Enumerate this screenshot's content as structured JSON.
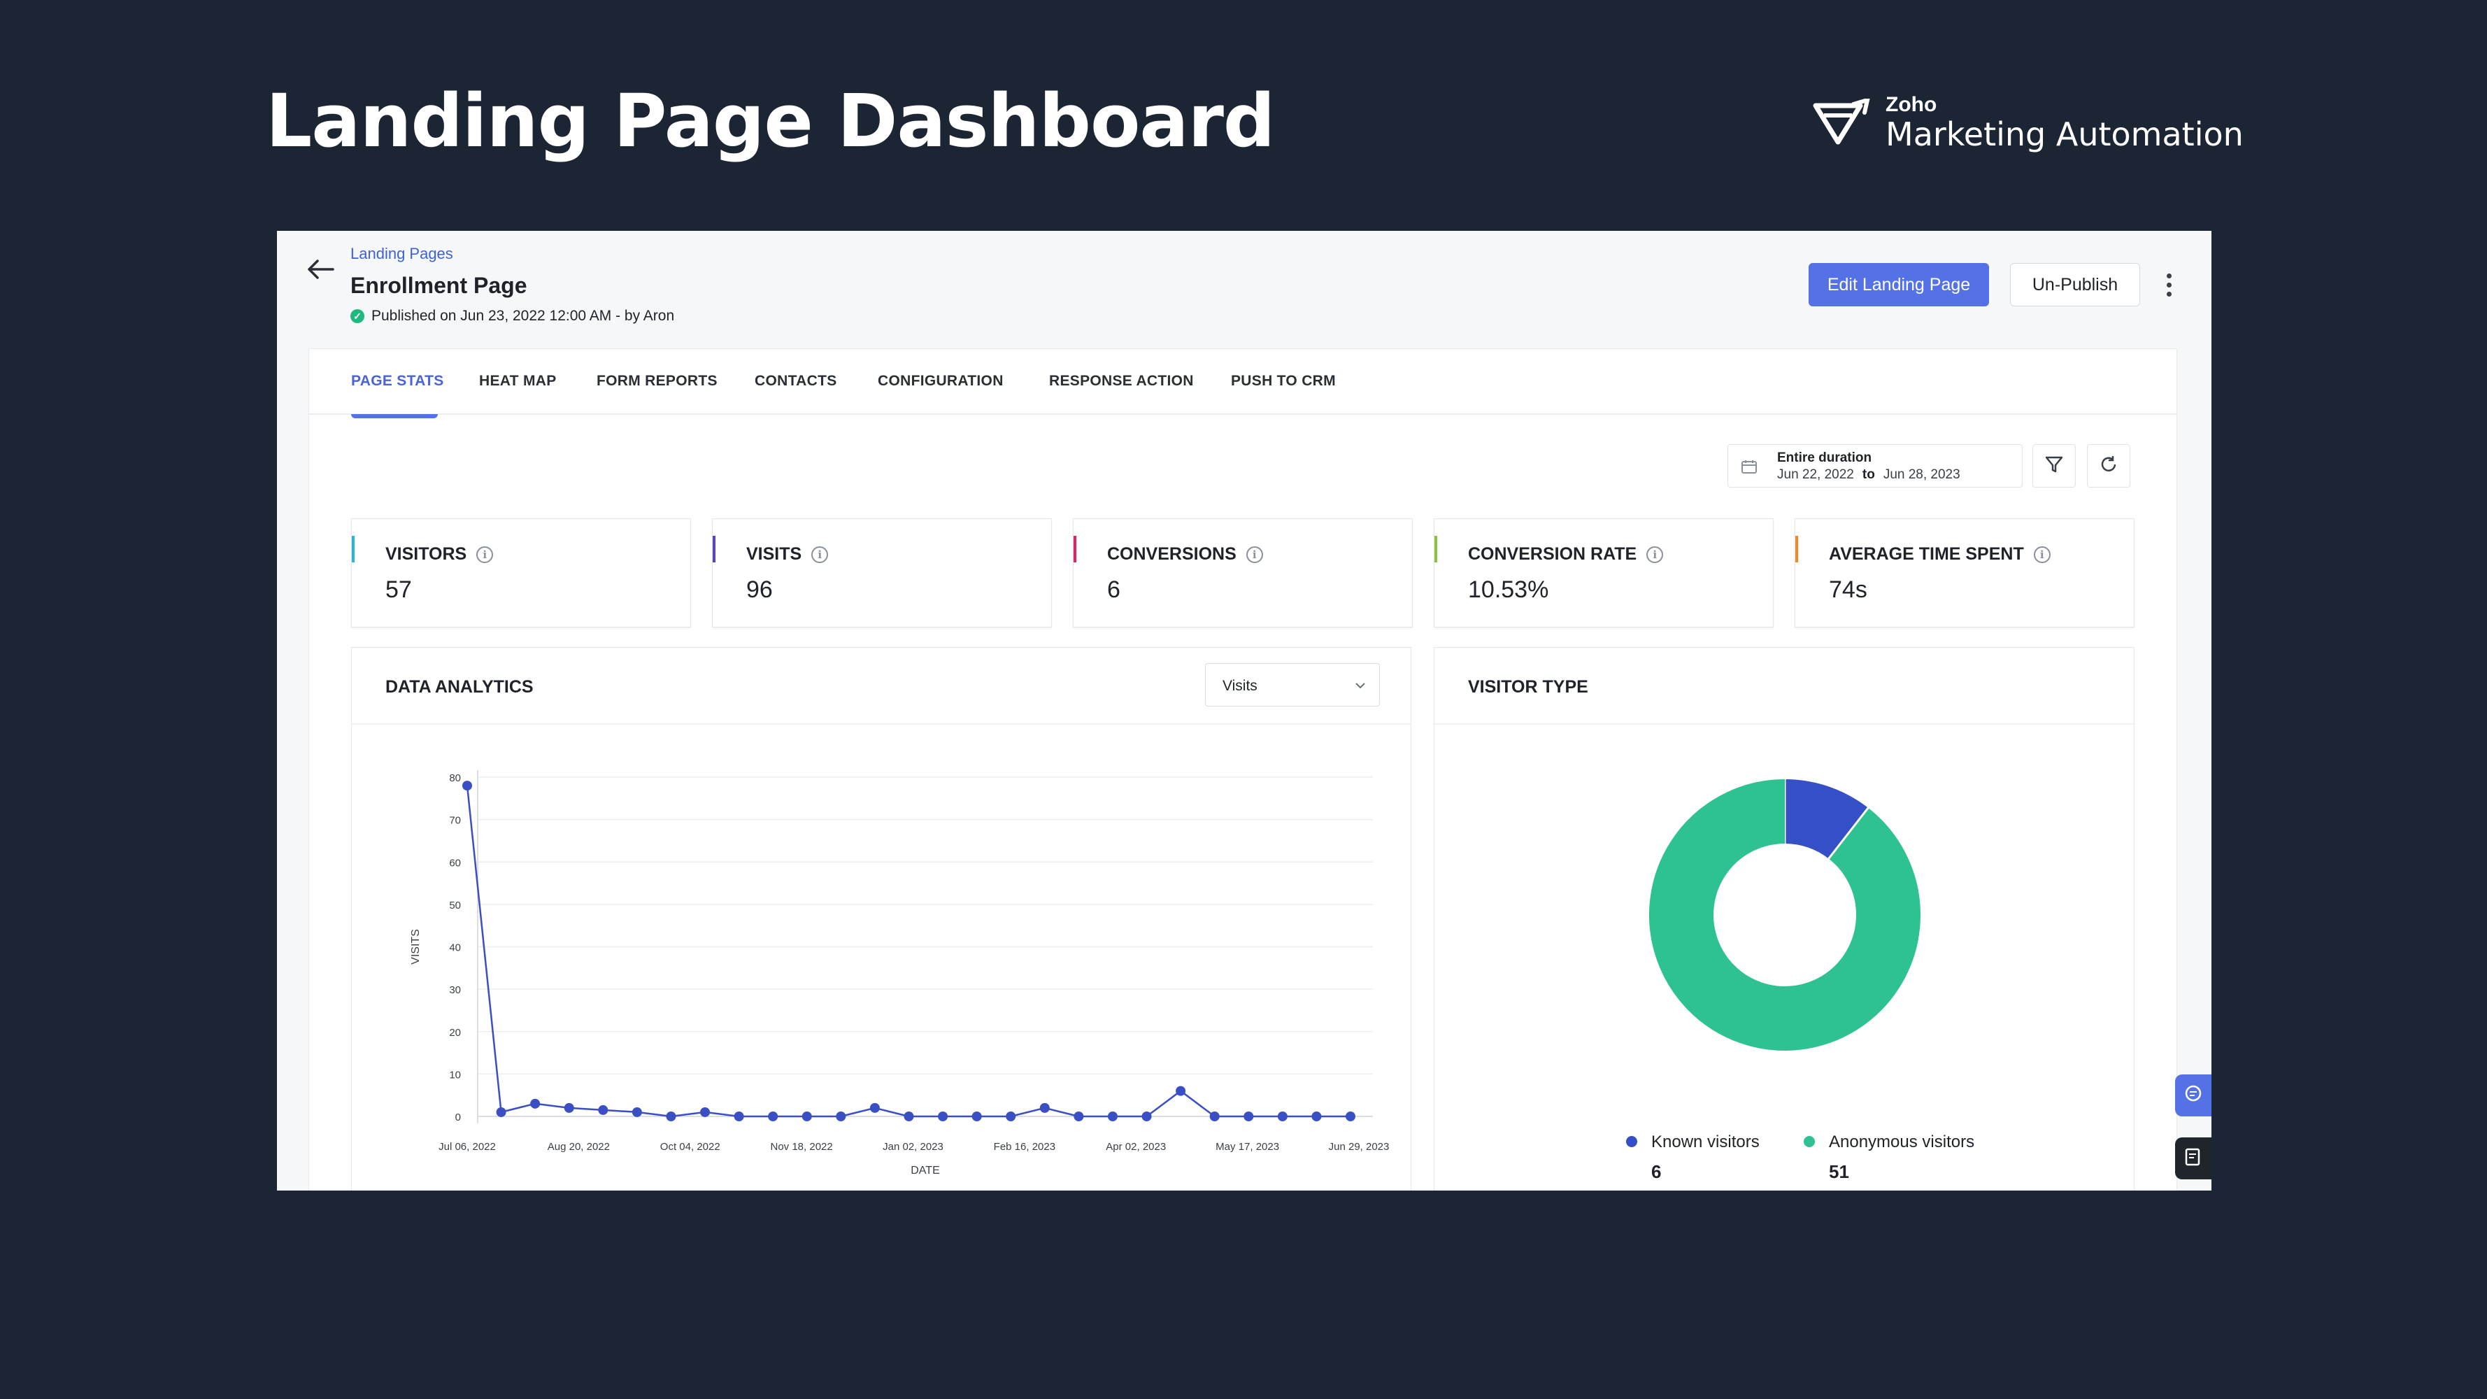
{
  "hero": {
    "title": "Landing Page Dashboard"
  },
  "brand": {
    "small": "Zoho",
    "big": "Marketing Automation"
  },
  "header": {
    "breadcrumb": "Landing Pages",
    "page_name": "Enrollment Page",
    "published_text": "Published on Jun 23, 2022 12:00 AM - by Aron",
    "edit_button": "Edit Landing Page",
    "unpublish_button": "Un-Publish"
  },
  "tabs": [
    {
      "label": "PAGE STATS",
      "active": true
    },
    {
      "label": "HEAT MAP"
    },
    {
      "label": "FORM REPORTS"
    },
    {
      "label": "CONTACTS"
    },
    {
      "label": "CONFIGURATION"
    },
    {
      "label": "RESPONSE ACTION"
    },
    {
      "label": "PUSH TO CRM"
    }
  ],
  "date_filter": {
    "title": "Entire duration",
    "from": "Jun 22, 2022",
    "to_word": "to",
    "to": "Jun 28, 2023"
  },
  "stats": [
    {
      "label": "VISITORS",
      "value": "57",
      "color": "#2bb3d9"
    },
    {
      "label": "VISITS",
      "value": "96",
      "color": "#5a3fd1"
    },
    {
      "label": "CONVERSIONS",
      "value": "6",
      "color": "#e0245e"
    },
    {
      "label": "CONVERSION RATE",
      "value": "10.53%",
      "color": "#8ac43f"
    },
    {
      "label": "AVERAGE TIME SPENT",
      "value": "74s",
      "color": "#f08a24"
    }
  ],
  "analytics": {
    "title": "DATA ANALYTICS",
    "select_value": "Visits"
  },
  "visitor_type": {
    "title": "VISITOR TYPE"
  },
  "icons": [
    "back-arrow-icon",
    "check-icon",
    "kebab-icon",
    "calendar-icon",
    "filter-icon",
    "refresh-icon",
    "info-icon",
    "chevron-down-icon",
    "chat-icon",
    "notes-icon",
    "zoho-logo-icon"
  ],
  "chart_data": [
    {
      "type": "line",
      "ylabel": "VISITS",
      "xlabel": "DATE",
      "ylim": [
        0,
        80
      ],
      "yticks": [
        "0",
        "10",
        "20",
        "30",
        "40",
        "50",
        "60",
        "70",
        "80"
      ],
      "xticks": [
        "Jul 06, 2022",
        "Aug 20, 2022",
        "Oct 04, 2022",
        "Nov 18, 2022",
        "Jan 02, 2023",
        "Feb 16, 2023",
        "Apr 02, 2023",
        "May 17, 2023",
        "Jun 29, 2023"
      ],
      "grid": true,
      "color": "#3b4fc4",
      "series": [
        {
          "values": [
            78,
            1,
            3,
            2,
            1.5,
            1,
            0,
            1,
            0,
            0,
            0,
            0,
            2,
            0,
            0,
            0,
            0,
            2,
            0,
            0,
            0,
            6,
            0,
            0,
            0,
            0,
            0
          ]
        }
      ]
    },
    {
      "type": "pie",
      "donut": true,
      "legend_position": "bottom",
      "slices": [
        {
          "label": "Known visitors",
          "value": 6,
          "color": "#3550c6"
        },
        {
          "label": "Anonymous visitors",
          "value": 51,
          "color": "#2ec292"
        }
      ]
    }
  ]
}
